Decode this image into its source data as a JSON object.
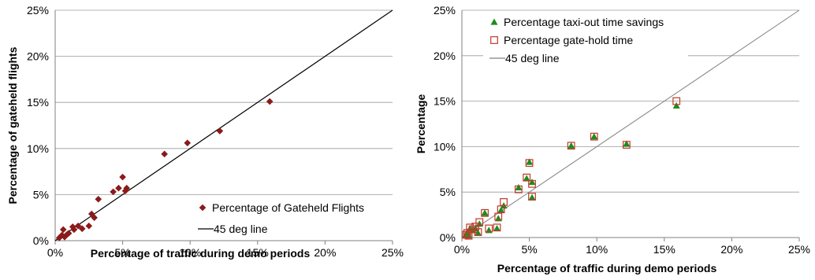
{
  "chart_data": [
    {
      "type": "scatter",
      "title": "",
      "xlabel": "Percentage of traffic during demo periods",
      "ylabel": "Percentage of gateheld flights",
      "xlim": [
        0,
        25
      ],
      "ylim": [
        0,
        25
      ],
      "x_ticks": [
        "0%",
        "5%",
        "10%",
        "15%",
        "20%",
        "25%"
      ],
      "y_ticks": [
        "0%",
        "5%",
        "10%",
        "15%",
        "20%",
        "25%"
      ],
      "grid": "horizontal",
      "legend_position": "bottom-right",
      "series": [
        {
          "name": "Percentage of Gateheld Flights",
          "marker": "diamond",
          "color": "#8B1A1A",
          "points": [
            [
              0.3,
              0.3
            ],
            [
              0.5,
              0.6
            ],
            [
              0.6,
              1.2
            ],
            [
              0.7,
              0.4
            ],
            [
              0.9,
              0.7
            ],
            [
              1.0,
              0.8
            ],
            [
              1.3,
              1.5
            ],
            [
              1.4,
              1.2
            ],
            [
              1.7,
              1.6
            ],
            [
              2.0,
              1.3
            ],
            [
              2.5,
              1.6
            ],
            [
              2.7,
              2.9
            ],
            [
              2.9,
              2.5
            ],
            [
              3.2,
              4.5
            ],
            [
              4.3,
              5.3
            ],
            [
              4.7,
              5.7
            ],
            [
              5.0,
              6.9
            ],
            [
              5.2,
              5.4
            ],
            [
              5.3,
              5.7
            ],
            [
              8.1,
              9.4
            ],
            [
              9.8,
              10.6
            ],
            [
              12.2,
              11.9
            ],
            [
              15.9,
              15.1
            ]
          ]
        },
        {
          "name": "45 deg line",
          "marker": "line",
          "color": "#000000",
          "points": [
            [
              0,
              0
            ],
            [
              25,
              25
            ]
          ]
        }
      ]
    },
    {
      "type": "scatter",
      "title": "",
      "xlabel": "Percentage of traffic during demo periods",
      "ylabel": "Percentage",
      "xlim": [
        0,
        25
      ],
      "ylim": [
        0,
        25
      ],
      "x_ticks": [
        "0%",
        "5%",
        "10%",
        "15%",
        "20%",
        "25%"
      ],
      "y_ticks": [
        "0%",
        "5%",
        "10%",
        "15%",
        "20%",
        "25%"
      ],
      "grid": "horizontal",
      "legend_position": "top-left",
      "series": [
        {
          "name": "Percentage taxi-out time savings",
          "marker": "triangle",
          "color": "#1E8C1E",
          "points": [
            [
              0.3,
              0.3
            ],
            [
              0.4,
              0.6
            ],
            [
              0.5,
              0.2
            ],
            [
              0.6,
              1.0
            ],
            [
              0.8,
              0.8
            ],
            [
              1.0,
              1.0
            ],
            [
              1.2,
              0.5
            ],
            [
              1.3,
              1.5
            ],
            [
              1.7,
              2.7
            ],
            [
              2.0,
              0.8
            ],
            [
              2.6,
              1.0
            ],
            [
              2.7,
              2.1
            ],
            [
              2.9,
              3.0
            ],
            [
              3.1,
              3.5
            ],
            [
              4.2,
              5.5
            ],
            [
              4.8,
              6.5
            ],
            [
              5.0,
              8.3
            ],
            [
              5.2,
              6.1
            ],
            [
              5.2,
              4.4
            ],
            [
              8.1,
              10.1
            ],
            [
              9.8,
              11.1
            ],
            [
              12.2,
              10.3
            ],
            [
              15.9,
              14.5
            ]
          ]
        },
        {
          "name": "Percentage gate-hold time",
          "marker": "square",
          "color": "#C0392B",
          "points": [
            [
              0.3,
              0.3
            ],
            [
              0.4,
              0.5
            ],
            [
              0.5,
              0.2
            ],
            [
              0.6,
              1.1
            ],
            [
              0.8,
              0.9
            ],
            [
              1.0,
              1.2
            ],
            [
              1.2,
              0.6
            ],
            [
              1.3,
              1.7
            ],
            [
              1.7,
              2.7
            ],
            [
              2.0,
              1.0
            ],
            [
              2.6,
              1.1
            ],
            [
              2.7,
              2.3
            ],
            [
              2.9,
              3.1
            ],
            [
              3.1,
              3.9
            ],
            [
              4.2,
              5.3
            ],
            [
              4.8,
              6.6
            ],
            [
              5.0,
              8.2
            ],
            [
              5.2,
              5.9
            ],
            [
              5.2,
              4.5
            ],
            [
              8.1,
              10.1
            ],
            [
              9.8,
              11.1
            ],
            [
              12.2,
              10.2
            ],
            [
              15.9,
              15.0
            ]
          ]
        },
        {
          "name": "45 deg line",
          "marker": "line",
          "color": "#808080",
          "points": [
            [
              0,
              0
            ],
            [
              25,
              25
            ]
          ]
        }
      ]
    }
  ]
}
